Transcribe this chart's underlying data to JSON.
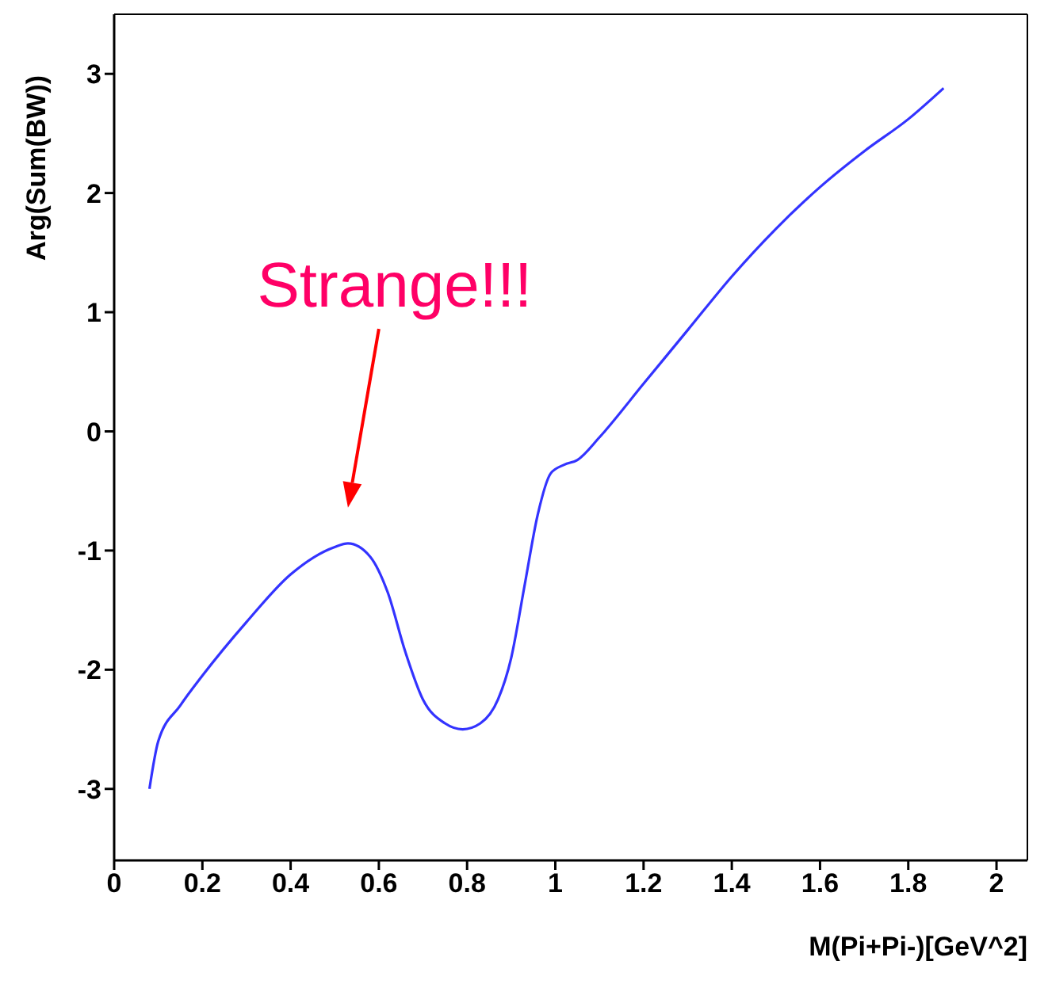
{
  "chart_data": {
    "type": "line",
    "xlabel": "M(Pi+Pi-)[GeV^2]",
    "ylabel": "Arg(Sum(BW))",
    "x": [
      0.08,
      0.1,
      0.15,
      0.2,
      0.3,
      0.4,
      0.5,
      0.53,
      0.58,
      0.62,
      0.66,
      0.7,
      0.75,
      0.79,
      0.83,
      0.87,
      0.9,
      0.93,
      0.96,
      0.99,
      1.02,
      1.05,
      1.1,
      1.2,
      1.3,
      1.4,
      1.5,
      1.6,
      1.7,
      1.8,
      1.88
    ],
    "series": [
      {
        "color": "#3333ff",
        "values": [
          -3.0,
          -2.6,
          -2.3,
          -2.05,
          -1.6,
          -1.2,
          -0.97,
          -0.94,
          -1.05,
          -1.35,
          -1.85,
          -2.25,
          -2.45,
          -2.5,
          -2.45,
          -2.25,
          -1.9,
          -1.3,
          -0.7,
          -0.35,
          -0.28,
          -0.24,
          -0.05,
          0.4,
          0.85,
          1.3,
          1.7,
          2.05,
          2.35,
          2.62,
          2.88
        ]
      }
    ],
    "xlim": [
      0,
      2.07
    ],
    "xticks": [
      0,
      0.2,
      0.4,
      0.6,
      0.8,
      1,
      1.2,
      1.4,
      1.6,
      1.8,
      2
    ],
    "ylim": [
      -3.6,
      3.5
    ],
    "yticks": [
      -3,
      -2,
      -1,
      0,
      1,
      2,
      3
    ],
    "grid": false,
    "legend": false,
    "marker": "none",
    "line_style": "solid",
    "annotations": [
      "Strange!!!"
    ]
  }
}
